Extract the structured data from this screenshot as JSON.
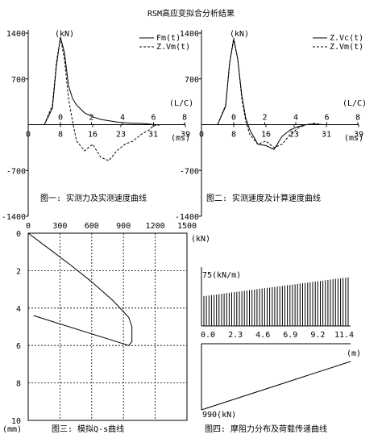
{
  "title": "RSM高应变拟合分析结果",
  "chart_data": [
    {
      "id": "fig1",
      "type": "line",
      "caption": "图一: 实测力及实测速度曲线",
      "y_unit": "(kN)",
      "y_ticks": [
        "1400",
        "700",
        "-700",
        "-1400"
      ],
      "ylim": [
        -1400,
        1400
      ],
      "x_ticks": [
        "0",
        "8",
        "16",
        "23",
        "31",
        "39"
      ],
      "x_unit": "(ms)",
      "x2_ticks": [
        "0",
        "2",
        "4",
        "6",
        "8"
      ],
      "x2_unit": "(L/C)",
      "xlim": [
        0,
        39
      ],
      "legend": [
        "Fm(t)",
        "Z.Vm(t)"
      ],
      "x": [
        0,
        4,
        6,
        7,
        8,
        9,
        10,
        11,
        12,
        14,
        16,
        18,
        20,
        22,
        24,
        26,
        28,
        30,
        31,
        33,
        36,
        39
      ],
      "series": [
        {
          "name": "Fm(t)",
          "style": "solid",
          "values": [
            0,
            0,
            250,
            900,
            1340,
            1100,
            600,
            400,
            300,
            180,
            120,
            80,
            60,
            40,
            30,
            20,
            20,
            10,
            0,
            0,
            0,
            0
          ]
        },
        {
          "name": "Z.Vm(t)",
          "style": "dash",
          "values": [
            0,
            0,
            300,
            950,
            1330,
            1000,
            400,
            50,
            -250,
            -400,
            -300,
            -500,
            -550,
            -400,
            -300,
            -250,
            -150,
            -80,
            -20,
            0,
            0,
            0
          ]
        }
      ]
    },
    {
      "id": "fig2",
      "type": "line",
      "caption": "图二: 实测速度及计算速度曲线",
      "y_unit": "(kN)",
      "y_ticks": [
        "1400",
        "700",
        "-700",
        "-1400"
      ],
      "ylim": [
        -1400,
        1400
      ],
      "x_ticks": [
        "0",
        "8",
        "16",
        "23",
        "31",
        "39"
      ],
      "x_unit": "(ms)",
      "x2_ticks": [
        "0",
        "2",
        "4",
        "6",
        "8"
      ],
      "x2_unit": "(L/C)",
      "xlim": [
        0,
        39
      ],
      "legend": [
        "Z.Vc(t)",
        "Z.Vm(t)"
      ],
      "x": [
        0,
        4,
        6,
        7,
        8,
        9,
        10,
        11,
        12,
        14,
        16,
        18,
        20,
        22,
        24,
        26,
        28,
        30,
        31,
        33,
        36,
        39
      ],
      "series": [
        {
          "name": "Z.Vc(t)",
          "style": "solid",
          "values": [
            0,
            0,
            280,
            950,
            1300,
            1000,
            450,
            100,
            -80,
            -300,
            -320,
            -380,
            -180,
            -80,
            -30,
            0,
            10,
            0,
            0,
            0,
            0,
            0
          ]
        },
        {
          "name": "Z.Vm(t)",
          "style": "dash",
          "values": [
            0,
            0,
            300,
            950,
            1330,
            1000,
            400,
            50,
            -150,
            -300,
            -250,
            -350,
            -300,
            -150,
            -50,
            0,
            20,
            0,
            0,
            0,
            0,
            0
          ]
        }
      ]
    },
    {
      "id": "fig3",
      "type": "line",
      "caption": "图三: 模拟Q-s曲线",
      "x_ticks": [
        "0",
        "300",
        "600",
        "900",
        "1200",
        "1500"
      ],
      "x_unit": "(kN)",
      "xlim": [
        0,
        1500
      ],
      "y_ticks": [
        "0",
        "2",
        "4",
        "6",
        "8",
        "10"
      ],
      "y_unit": "(mm)",
      "ylim": [
        0,
        10
      ],
      "load": [
        0,
        200,
        400,
        600,
        800,
        950,
        980,
        980,
        950,
        50
      ],
      "settlement": [
        0,
        0.85,
        1.7,
        2.6,
        3.6,
        4.5,
        5.0,
        5.8,
        6.0,
        4.4
      ]
    },
    {
      "id": "fig4",
      "type": "bar",
      "caption": "图四: 摩阻力分布及荷载传递曲线",
      "top_unit": "75(kN/m)",
      "x_ticks": [
        "0.0",
        "2.3",
        "4.6",
        "6.9",
        "9.2",
        "11.4"
      ],
      "x_unit": "(m)",
      "xlim": [
        0,
        11.4
      ],
      "friction_ylim": [
        0,
        75
      ],
      "friction_start": 38,
      "friction_end": 62,
      "friction_bar_count": 58,
      "bottom_label": "990(kN)",
      "transfer_start": 990,
      "transfer_end": 0
    }
  ]
}
